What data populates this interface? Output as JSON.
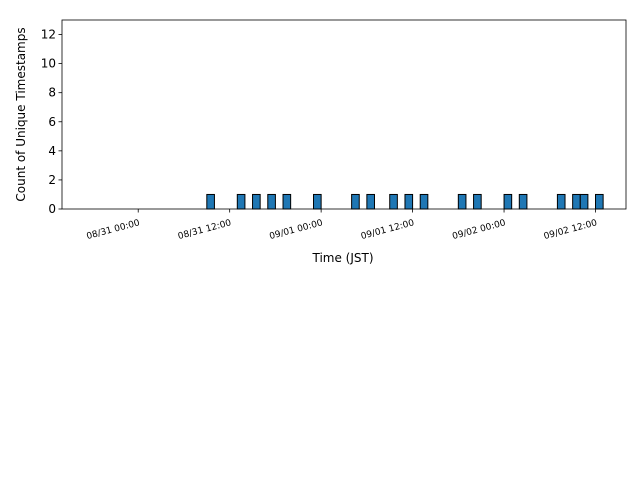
{
  "chart_data": {
    "type": "bar",
    "x_label": "Time (JST)",
    "y_label": "Count of Unique Timestamps",
    "x": [
      "08/31 09:00",
      "08/31 13:00",
      "08/31 15:00",
      "08/31 17:00",
      "08/31 19:00",
      "08/31 23:00",
      "09/01 04:00",
      "09/01 06:00",
      "09/01 09:00",
      "09/01 11:00",
      "09/01 13:00",
      "09/01 18:00",
      "09/01 20:00",
      "09/02 00:00",
      "09/02 02:00",
      "09/02 07:00",
      "09/02 09:00",
      "09/02 10:00",
      "09/02 12:00"
    ],
    "values": [
      1,
      1,
      1,
      1,
      1,
      1,
      1,
      1,
      1,
      1,
      1,
      1,
      1,
      1,
      1,
      1,
      1,
      1,
      1
    ],
    "color": "#1f77b4",
    "edge_color": "#000000",
    "xlim": [
      "08/30 14:00",
      "09/02 16:00"
    ],
    "xticks": [
      "08/31 00:00",
      "08/31 12:00",
      "09/01 00:00",
      "09/01 12:00",
      "09/02 00:00",
      "09/02 12:00"
    ],
    "ylim": [
      0,
      13
    ],
    "yticks": [
      0,
      2,
      4,
      6,
      8,
      10,
      12
    ],
    "grid": false
  }
}
